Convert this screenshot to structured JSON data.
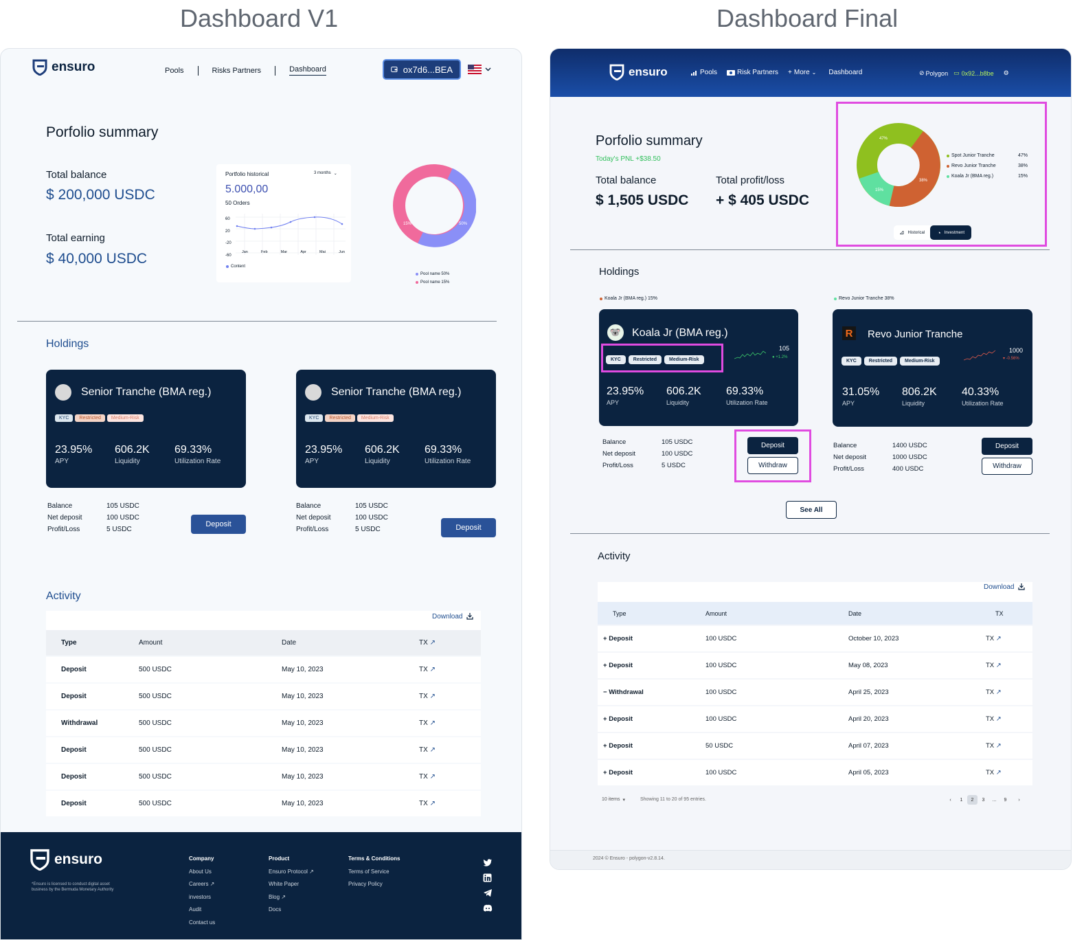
{
  "headings": {
    "v1": "Dashboard V1",
    "final": "Dashboard Final"
  },
  "v1": {
    "brand": "ensuro",
    "nav": [
      "Pools",
      "Risks Partners",
      "Dashboard"
    ],
    "wallet": "ox7d6...BEA",
    "summary": {
      "title": "Porfolio summary",
      "total_balance_label": "Total balance",
      "total_balance": "$ 200,000 USDC",
      "total_earning_label": "Total earning",
      "total_earning": "$ 40,000 USDC"
    },
    "historical": {
      "title": "Portfolio historical",
      "range": "3 months",
      "value": "5.000,00",
      "orders": "50 Orders",
      "y_ticks": [
        "60",
        "20",
        "-20",
        "-60"
      ],
      "x_ticks": [
        "Jan",
        "Feb",
        "Mar",
        "Apr",
        "Mai",
        "Jun"
      ],
      "legend": "Content"
    },
    "donut": {
      "label_a": "15%",
      "label_b": "50%",
      "legend": [
        "Pool name  50%",
        "Pool name  15%"
      ],
      "colors": {
        "pink": "#f06a9c",
        "blue": "#8a8ff7"
      }
    },
    "holdings_title": "Holdings",
    "holdings": [
      {
        "name": "Senior Tranche (BMA reg.)",
        "tags": [
          "KYC",
          "Restricted",
          "Medium-Risk"
        ],
        "stats": [
          {
            "value": "23.95%",
            "label": "APY"
          },
          {
            "value": "606.2K",
            "label": "Liquidity"
          },
          {
            "value": "69.33%",
            "label": "Utilization Rate"
          }
        ],
        "balance_label": "Balance",
        "balance": "105 USDC",
        "net_label": "Net deposit",
        "net": "100 USDC",
        "pl_label": "Profit/Loss",
        "pl": "5 USDC",
        "deposit": "Deposit"
      },
      {
        "name": "Senior Tranche (BMA reg.)",
        "tags": [
          "KYC",
          "Restricted",
          "Medium-Risk"
        ],
        "stats": [
          {
            "value": "23.95%",
            "label": "APY"
          },
          {
            "value": "606.2K",
            "label": "Liquidity"
          },
          {
            "value": "69.33%",
            "label": "Utilization Rate"
          }
        ],
        "balance_label": "Balance",
        "balance": "105 USDC",
        "net_label": "Net deposit",
        "net": "100 USDC",
        "pl_label": "Profit/Loss",
        "pl": "5 USDC",
        "deposit": "Deposit"
      }
    ],
    "activity": {
      "title": "Activity",
      "download": "Download",
      "columns": [
        "Type",
        "Amount",
        "Date",
        "TX"
      ],
      "rows": [
        {
          "type": "Deposit",
          "amount": "500 USDC",
          "date": "May 10, 2023",
          "tx": "TX"
        },
        {
          "type": "Deposit",
          "amount": "500 USDC",
          "date": "May 10, 2023",
          "tx": "TX"
        },
        {
          "type": "Withdrawal",
          "amount": "500 USDC",
          "date": "May 10, 2023",
          "tx": "TX"
        },
        {
          "type": "Deposit",
          "amount": "500 USDC",
          "date": "May 10, 2023",
          "tx": "TX"
        },
        {
          "type": "Deposit",
          "amount": "500 USDC",
          "date": "May 10, 2023",
          "tx": "TX"
        },
        {
          "type": "Deposit",
          "amount": "500 USDC",
          "date": "May 10, 2023",
          "tx": "TX"
        }
      ]
    },
    "footer": {
      "brand": "ensuro",
      "disclaimer1": "*Ensuro is licensed to conduct digital asset",
      "disclaimer2": "business by the Bermuda Monetary Authority",
      "company": {
        "title": "Company",
        "items": [
          "About Us",
          "Careers",
          "investors",
          "Audit",
          "Contact us"
        ]
      },
      "product": {
        "title": "Product",
        "items": [
          "Ensuro Protocol",
          "White Paper",
          "Blog",
          "Docs"
        ]
      },
      "terms": {
        "title": "Terms & Conditions",
        "items": [
          "Terms of Service",
          "Privacy Policy"
        ]
      }
    }
  },
  "final": {
    "brand": "ensuro",
    "nav": {
      "pools": "Pools",
      "risk": "Risk Partners",
      "more": "More",
      "dashboard": "Dashboard"
    },
    "network": "Polygon",
    "wallet": "0x92...b8be",
    "summary": {
      "title": "Porfolio summary",
      "pnl": "Today's PNL +$38.50",
      "total_balance_label": "Total balance",
      "total_balance": "$ 1,505 USDC",
      "total_pl_label": "Total profit/loss",
      "total_pl": "+ $ 405 USDC"
    },
    "donut": {
      "label_green": "47%",
      "label_orange": "38%",
      "label_mint": "15%",
      "legend": [
        {
          "name": "Spot Junior Tranche",
          "value": "47%",
          "color": "#8fc01f"
        },
        {
          "name": "Revo Junior Tranche",
          "value": "38%",
          "color": "#cf6232"
        },
        {
          "name": "Koala Jr (BMA reg.)",
          "value": "15%",
          "color": "#5fe0a0"
        }
      ],
      "toggle_historical": "Historical",
      "toggle_investment": "Investment"
    },
    "holdings_title": "Holdings",
    "holdings": [
      {
        "caption": "Koala Jr (BMA reg.)  15%",
        "name": "Koala Jr (BMA reg.)",
        "tags": [
          "KYC",
          "Restricted",
          "Medium-Risk"
        ],
        "spark_value": "105",
        "spark_change": "+1.2%",
        "stats": [
          {
            "value": "23.95%",
            "label": "APY"
          },
          {
            "value": "606.2K",
            "label": "Liquidity"
          },
          {
            "value": "69.33%",
            "label": "Utilization Rate"
          }
        ],
        "balance_label": "Balance",
        "balance": "105 USDC",
        "net_label": "Net deposit",
        "net": "100 USDC",
        "pl_label": "Profit/Loss",
        "pl": "5 USDC",
        "deposit": "Deposit",
        "withdraw": "Withdraw"
      },
      {
        "caption": "Revo Junior Tranche  38%",
        "name": "Revo Junior Tranche",
        "tags": [
          "KYC",
          "Restricted",
          "Medium-Risk"
        ],
        "spark_value": "1000",
        "spark_change": "-0.56%",
        "stats": [
          {
            "value": "31.05%",
            "label": "APY"
          },
          {
            "value": "806.2K",
            "label": "Liquidity"
          },
          {
            "value": "40.33%",
            "label": "Utilization Rate"
          }
        ],
        "balance_label": "Balance",
        "balance": "1400 USDC",
        "net_label": "Net deposit",
        "net": "1000 USDC",
        "pl_label": "Profit/Loss",
        "pl": "400 USDC",
        "deposit": "Deposit",
        "withdraw": "Withdraw"
      }
    ],
    "see_all": "See All",
    "activity": {
      "title": "Activity",
      "download": "Download",
      "columns": [
        "Type",
        "Amount",
        "Date",
        "TX"
      ],
      "rows": [
        {
          "sign": "+",
          "type": "Deposit",
          "amount": "100 USDC",
          "date": "October 10, 2023",
          "tx": "TX"
        },
        {
          "sign": "+",
          "type": "Deposit",
          "amount": "100 USDC",
          "date": "May 08, 2023",
          "tx": "TX"
        },
        {
          "sign": "−",
          "type": "Withdrawal",
          "amount": "100 USDC",
          "date": "April 25, 2023",
          "tx": "TX"
        },
        {
          "sign": "+",
          "type": "Deposit",
          "amount": "100 USDC",
          "date": "April 20, 2023",
          "tx": "TX"
        },
        {
          "sign": "+",
          "type": "Deposit",
          "amount": "50 USDC",
          "date": "April 07, 2023",
          "tx": "TX"
        },
        {
          "sign": "+",
          "type": "Deposit",
          "amount": "100 USDC",
          "date": "April 05, 2023",
          "tx": "TX"
        }
      ],
      "items_per_page": "10 items",
      "showing": "Showing 11 to 20 of 95 entries.",
      "pages": [
        "1",
        "2",
        "3",
        "...",
        "9"
      ],
      "current_page": "2"
    },
    "footer": "2024 © Ensuro - polygon-v2.8.14."
  }
}
